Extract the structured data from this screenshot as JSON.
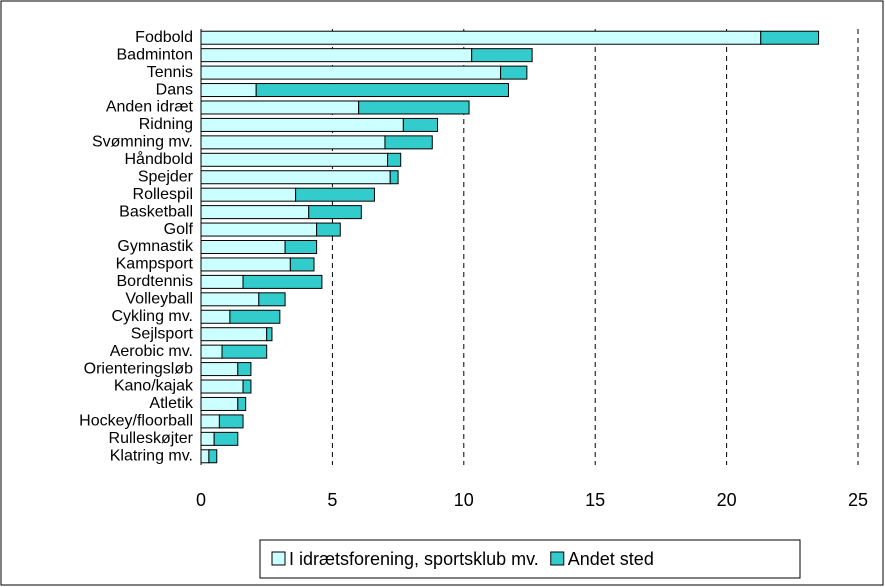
{
  "chart_data": {
    "type": "bar",
    "orientation": "horizontal",
    "stacked": true,
    "categories": [
      "Fodbold",
      "Badminton",
      "Tennis",
      "Dans",
      "Anden idræt",
      "Ridning",
      "Svømning mv.",
      "Håndbold",
      "Spejder",
      "Rollespil",
      "Basketball",
      "Golf",
      "Gymnastik",
      "Kampsport",
      "Bordtennis",
      "Volleyball",
      "Cykling mv.",
      "Sejlsport",
      "Aerobic mv.",
      "Orienteringsløb",
      "Kano/kajak",
      "Atletik",
      "Hockey/floorball",
      "Rulleskøjter",
      "Klatring mv."
    ],
    "series": [
      {
        "name": "I idrætsforening, sportsklub mv.",
        "color": "#ccffff",
        "values": [
          21.3,
          10.3,
          11.4,
          2.1,
          6.0,
          7.7,
          7.0,
          7.1,
          7.2,
          3.6,
          4.1,
          4.4,
          3.2,
          3.4,
          1.6,
          2.2,
          1.1,
          2.5,
          0.8,
          1.4,
          1.6,
          1.4,
          0.7,
          0.5,
          0.3
        ]
      },
      {
        "name": "Andet sted",
        "color": "#33cccc",
        "values": [
          2.2,
          2.3,
          1.0,
          9.6,
          4.2,
          1.3,
          1.8,
          0.5,
          0.3,
          3.0,
          2.0,
          0.9,
          1.2,
          0.9,
          3.0,
          1.0,
          1.9,
          0.2,
          1.7,
          0.5,
          0.3,
          0.3,
          0.9,
          0.9,
          0.3
        ]
      }
    ],
    "xlim": [
      0,
      25
    ],
    "xticks": [
      0,
      5,
      10,
      15,
      20,
      25
    ],
    "grid": true,
    "legend": "bottom"
  }
}
